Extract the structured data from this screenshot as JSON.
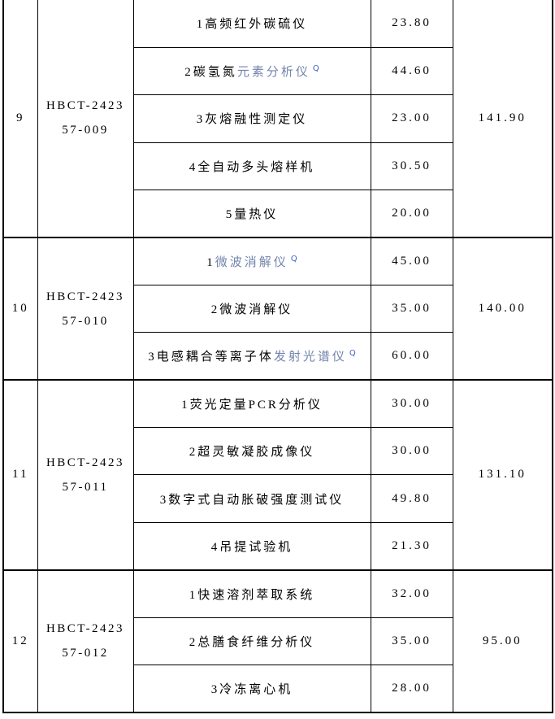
{
  "colors": {
    "background": "#ffffff",
    "border": "#000000",
    "text": "#000000",
    "link_text": "#7384ac",
    "q_icon": "#3e5ec6"
  },
  "q_icon_glyph": "Q",
  "table": {
    "groups": [
      {
        "no": "9",
        "code": [
          "HBCT-2423",
          "57-009"
        ],
        "total": "141.90",
        "items": [
          {
            "text": "1高频红外碳硫仪",
            "link": "",
            "q": false,
            "value": "23.80"
          },
          {
            "text": "2碳氢氮",
            "link": "元素分析仪",
            "q": true,
            "value": "44.60"
          },
          {
            "text": "3灰熔融性测定仪",
            "link": "",
            "q": false,
            "value": "23.00"
          },
          {
            "text": "4全自动多头熔样机",
            "link": "",
            "q": false,
            "value": "30.50"
          },
          {
            "text": "5量热仪",
            "link": "",
            "q": false,
            "value": "20.00"
          }
        ]
      },
      {
        "no": "10",
        "code": [
          "HBCT-2423",
          "57-010"
        ],
        "total": "140.00",
        "items": [
          {
            "text": "1",
            "link": "微波消解仪",
            "q": true,
            "value": "45.00"
          },
          {
            "text": "2微波消解仪",
            "link": "",
            "q": false,
            "value": "35.00"
          },
          {
            "text": "3电感耦合等离子体",
            "link": "发射光谱仪",
            "q": true,
            "value": "60.00"
          }
        ]
      },
      {
        "no": "11",
        "code": [
          "HBCT-2423",
          "57-011"
        ],
        "total": "131.10",
        "items": [
          {
            "text": "1荧光定量PCR分析仪",
            "link": "",
            "q": false,
            "value": "30.00"
          },
          {
            "text": "2超灵敏凝胶成像仪",
            "link": "",
            "q": false,
            "value": "30.00"
          },
          {
            "text": "3数字式自动胀破强度测试仪",
            "link": "",
            "q": false,
            "value": "49.80"
          },
          {
            "text": "4吊提试验机",
            "link": "",
            "q": false,
            "value": "21.30"
          }
        ]
      },
      {
        "no": "12",
        "code": [
          "HBCT-2423",
          "57-012"
        ],
        "total": "95.00",
        "items": [
          {
            "text": "1快速溶剂萃取系统",
            "link": "",
            "q": false,
            "value": "32.00"
          },
          {
            "text": "2总膳食纤维分析仪",
            "link": "",
            "q": false,
            "value": "35.00"
          },
          {
            "text": "3冷冻离心机",
            "link": "",
            "q": false,
            "value": "28.00"
          }
        ]
      }
    ]
  }
}
